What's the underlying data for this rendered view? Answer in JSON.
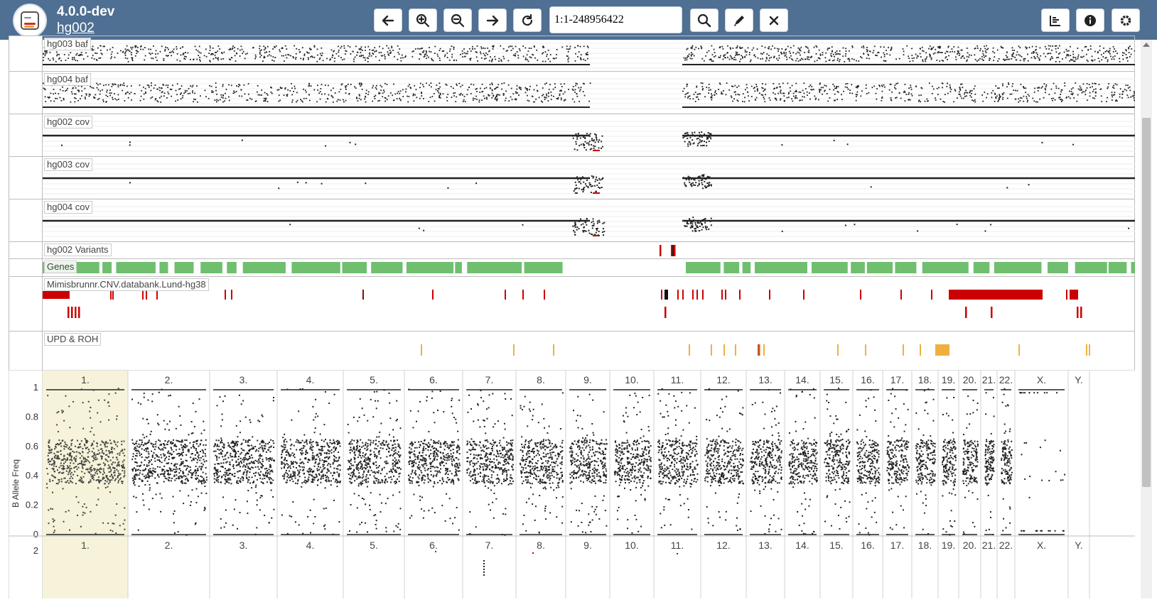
{
  "app": {
    "version": "4.0.0-dev",
    "case_name": "hg002"
  },
  "toolbar": {
    "region_value": "1:1-248956422",
    "buttons": [
      "pan-left",
      "zoom-in",
      "zoom-out",
      "pan-right",
      "reset",
      "search",
      "marker",
      "clear"
    ],
    "right_buttons": [
      "tracks",
      "info",
      "settings"
    ]
  },
  "tracks": [
    {
      "label": "hg003 baf",
      "type": "baf"
    },
    {
      "label": "hg004 baf",
      "type": "baf"
    },
    {
      "label": "hg002 cov",
      "type": "cov"
    },
    {
      "label": "hg003 cov",
      "type": "cov"
    },
    {
      "label": "hg004 cov",
      "type": "cov"
    },
    {
      "label": "hg002 Variants",
      "type": "variants"
    },
    {
      "label": "Genes",
      "type": "genes"
    },
    {
      "label": "Mimisbrunnr.CNV.databank.Lund-hg38",
      "type": "cnv"
    },
    {
      "label": "UPD & ROH",
      "type": "upd"
    }
  ],
  "overview": {
    "ylabel": "B Allele Freq",
    "y_ticks": [
      "1",
      "0.8",
      "0.6",
      "0.4",
      "0.2",
      "0"
    ],
    "chromosomes": [
      "1.",
      "2.",
      "3.",
      "4.",
      "5.",
      "6.",
      "7.",
      "8.",
      "9.",
      "10.",
      "11.",
      "12.",
      "13.",
      "14.",
      "15.",
      "16.",
      "17.",
      "18.",
      "19.",
      "20.",
      "21.",
      "22.",
      "X.",
      "Y."
    ],
    "selected": "1.",
    "second_row_tick": "2"
  },
  "colors": {
    "header": "#4f6f93",
    "genes": "#6fbf6f",
    "cnv": "#cc0000",
    "upd": "#f0b040",
    "selected_chrom": "#f6f3da"
  }
}
